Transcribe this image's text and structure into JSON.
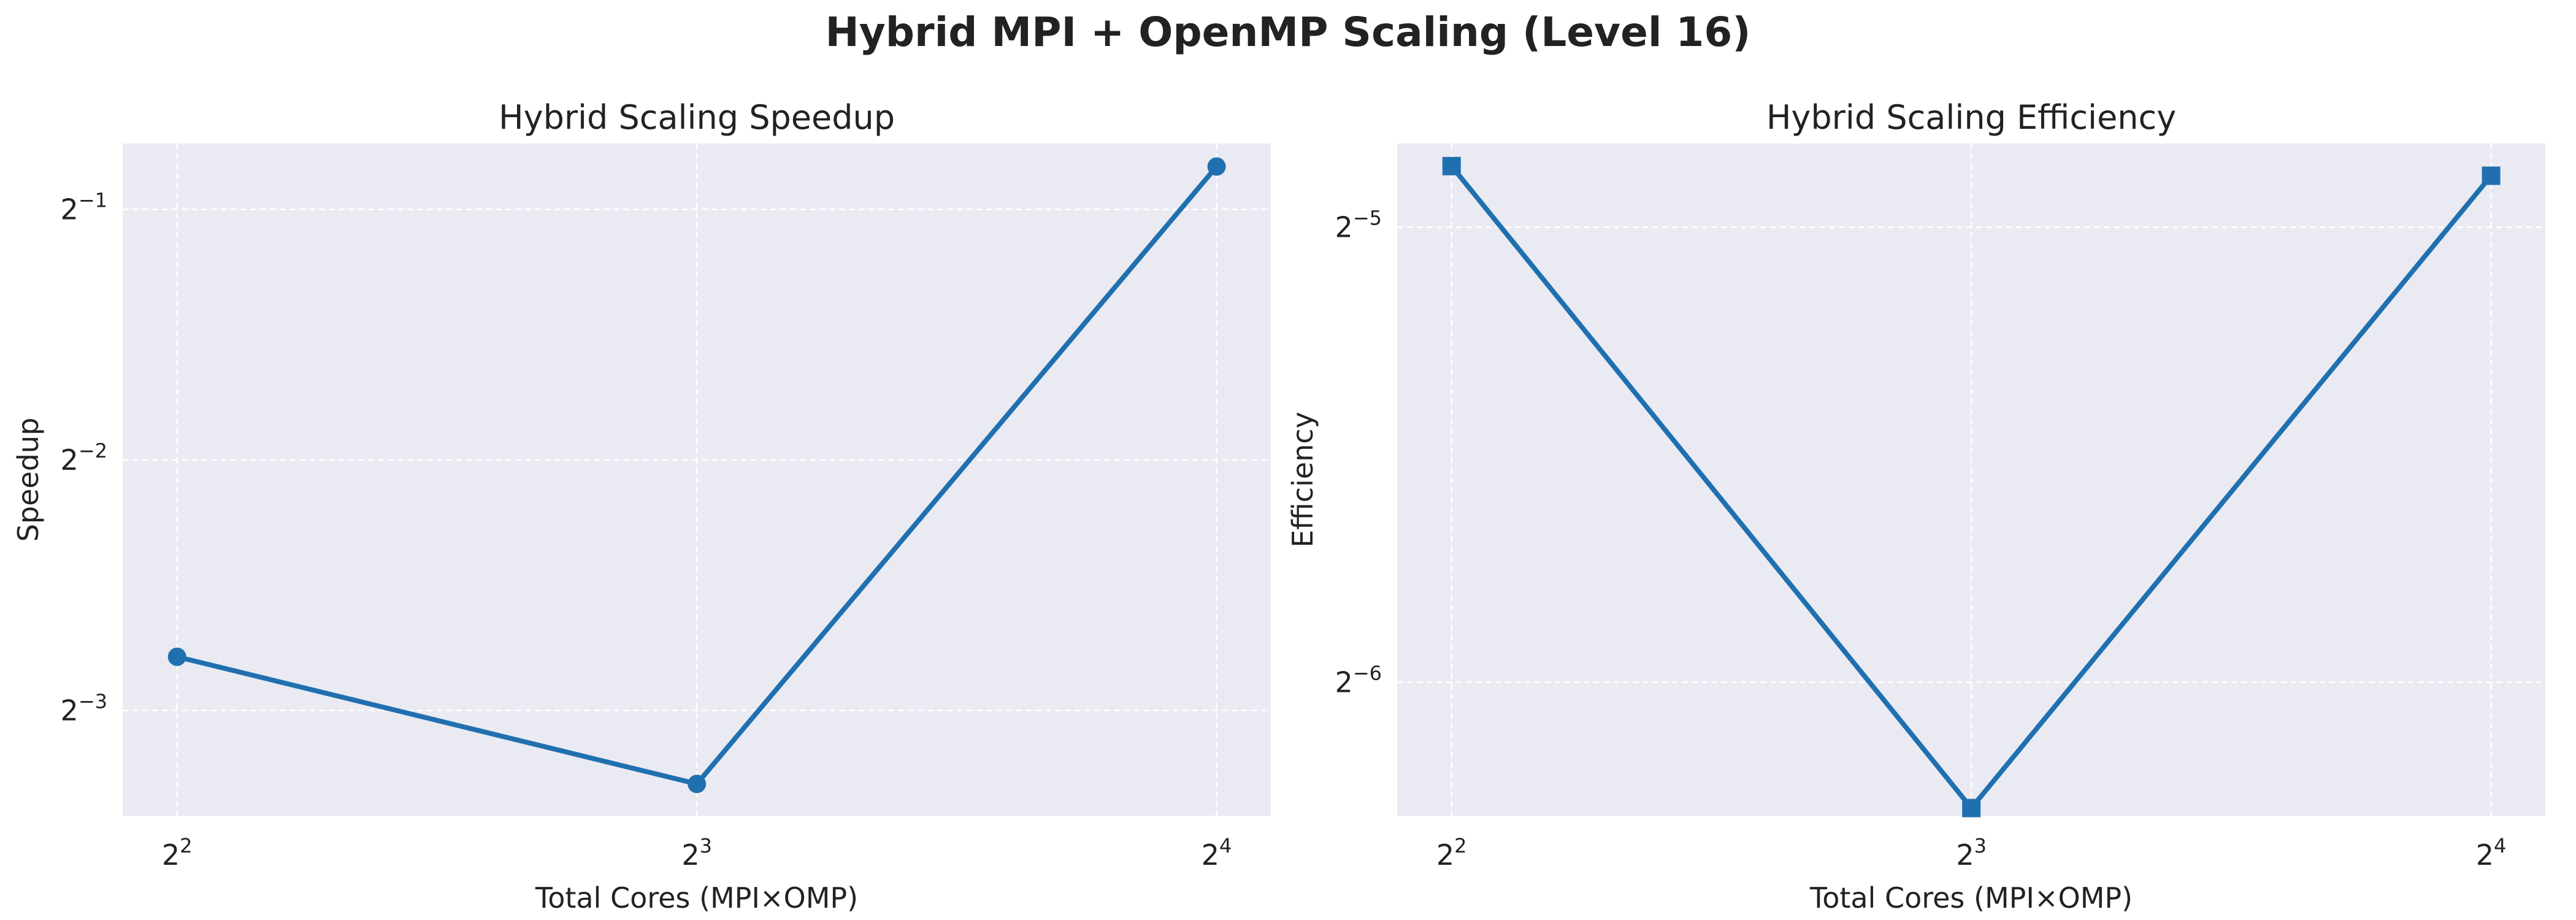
{
  "figure_title": "Hybrid MPI + OpenMP Scaling (Level 16)",
  "colors": {
    "series": "#2070b0",
    "plot_background": "#eaeaf2",
    "grid": "#ffffff"
  },
  "chart_data": [
    {
      "type": "line",
      "title": "Hybrid Scaling Speedup",
      "xlabel": "Total Cores (MPI×OMP)",
      "ylabel": "Speedup",
      "xscale": "log2",
      "yscale": "log2",
      "x": [
        4,
        8,
        16
      ],
      "xlim": [
        3.72,
        17.2
      ],
      "ylim": [
        0.0934,
        0.6
      ],
      "xticks": [
        {
          "value": 4,
          "base": "2",
          "exp": "2"
        },
        {
          "value": 8,
          "base": "2",
          "exp": "3"
        },
        {
          "value": 16,
          "base": "2",
          "exp": "4"
        }
      ],
      "yticks": [
        {
          "value": 0.125,
          "base": "2",
          "exp": "−3"
        },
        {
          "value": 0.25,
          "base": "2",
          "exp": "−2"
        },
        {
          "value": 0.5,
          "base": "2",
          "exp": "−1"
        }
      ],
      "marker": "circle",
      "grid": true,
      "series": [
        {
          "values": [
            0.145,
            0.102,
            0.563
          ]
        }
      ]
    },
    {
      "type": "line",
      "title": "Hybrid Scaling Efficiency",
      "xlabel": "Total Cores (MPI×OMP)",
      "ylabel": "Efficiency",
      "xscale": "log2",
      "yscale": "log2",
      "x": [
        4,
        8,
        16
      ],
      "xlim": [
        3.72,
        17.2
      ],
      "ylim": [
        0.01275,
        0.0355
      ],
      "xticks": [
        {
          "value": 4,
          "base": "2",
          "exp": "2"
        },
        {
          "value": 8,
          "base": "2",
          "exp": "3"
        },
        {
          "value": 16,
          "base": "2",
          "exp": "4"
        }
      ],
      "yticks": [
        {
          "value": 0.015625,
          "base": "2",
          "exp": "−6"
        },
        {
          "value": 0.03125,
          "base": "2",
          "exp": "−5"
        }
      ],
      "marker": "square",
      "grid": true,
      "series": [
        {
          "values": [
            0.0343,
            0.0129,
            0.0338
          ]
        }
      ]
    }
  ]
}
